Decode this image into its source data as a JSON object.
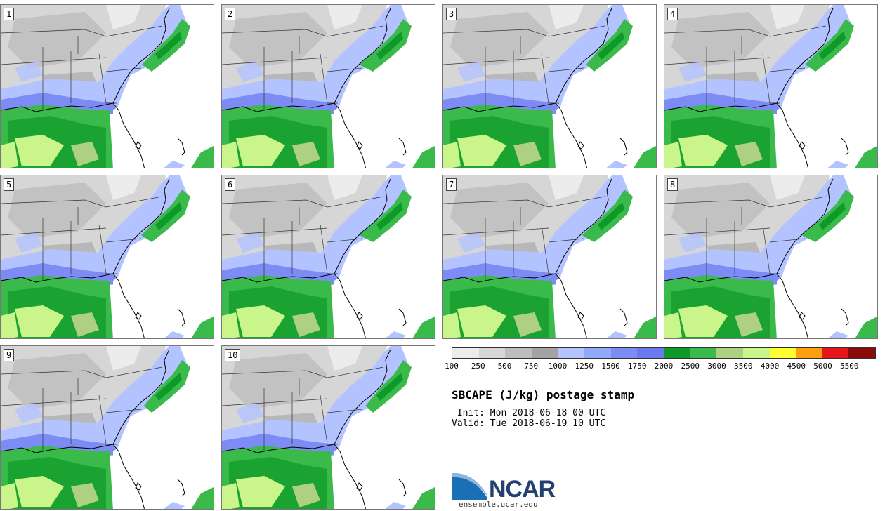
{
  "panels": [
    {
      "label": "1"
    },
    {
      "label": "2"
    },
    {
      "label": "3"
    },
    {
      "label": "4"
    },
    {
      "label": "5"
    },
    {
      "label": "6"
    },
    {
      "label": "7"
    },
    {
      "label": "8"
    },
    {
      "label": "9"
    },
    {
      "label": "10"
    }
  ],
  "colorbar": {
    "colors": [
      "#ececec",
      "#d7d7d7",
      "#bdbdbd",
      "#a3a3a3",
      "#b3c3ff",
      "#91a9fb",
      "#7d8cf4",
      "#6b79f1",
      "#0e9a28",
      "#3bba4c",
      "#aed082",
      "#c9f58a",
      "#ffff33",
      "#ff9f0f",
      "#e8151a",
      "#8a0a0a"
    ],
    "ticks": [
      "100",
      "250",
      "500",
      "750",
      "1000",
      "1250",
      "1500",
      "1750",
      "2000",
      "2500",
      "3000",
      "3500",
      "4000",
      "4500",
      "5000",
      "5500"
    ]
  },
  "title": "SBCAPE (J/kg) postage stamp",
  "init_line": " Init: Mon 2018-06-18 00 UTC",
  "valid_line": "Valid: Tue 2018-06-19 10 UTC",
  "logo": {
    "text": "NCAR",
    "url": "ensemble.ucar.edu",
    "brand_color": "#24406f",
    "swoosh_color": "#1b6fb4"
  }
}
